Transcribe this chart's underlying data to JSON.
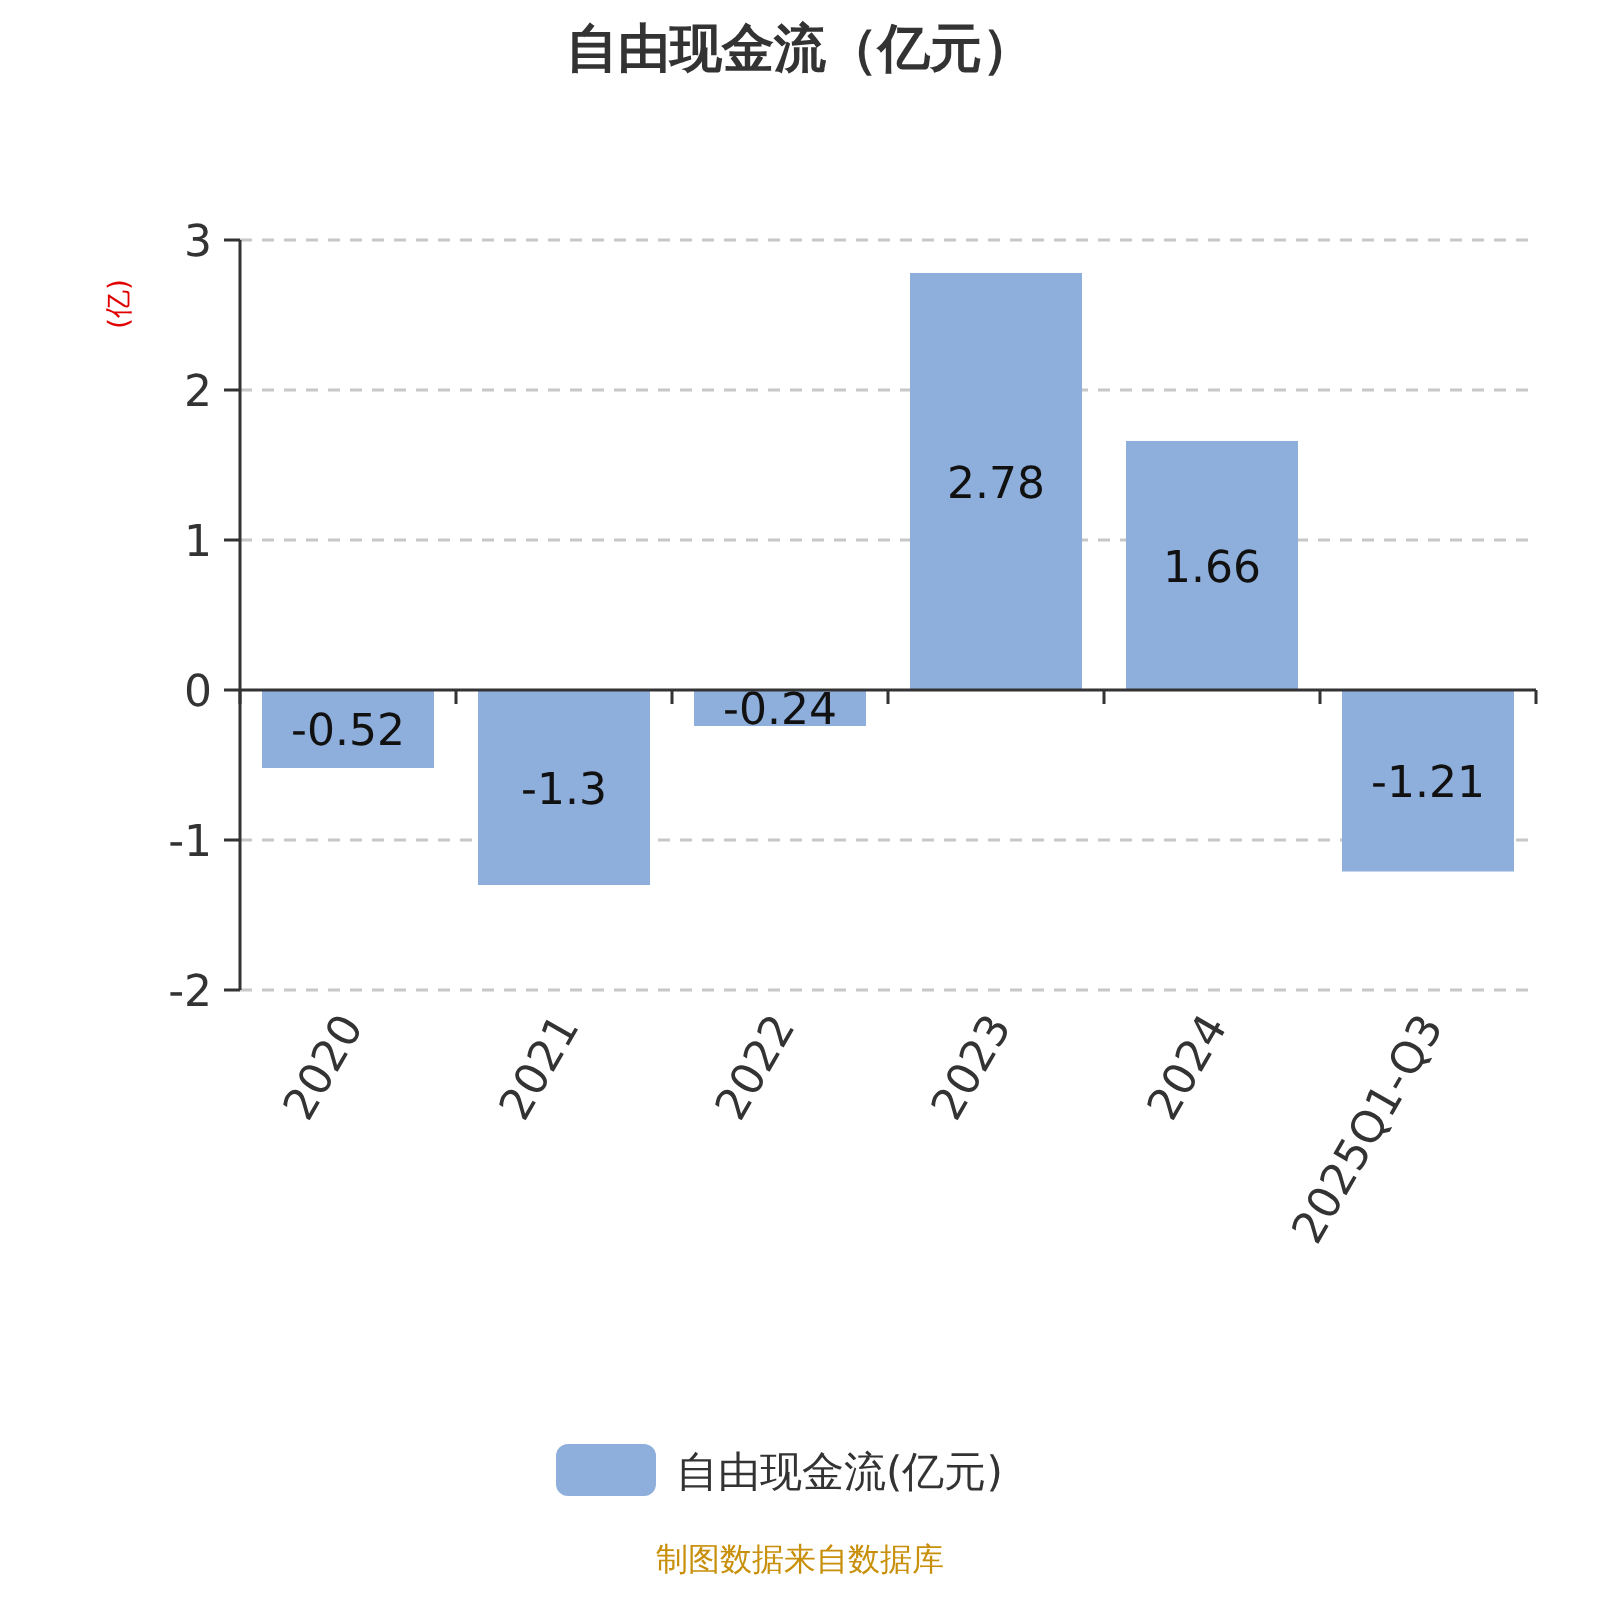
{
  "chart_data": {
    "type": "bar",
    "title": "自由现金流（亿元）",
    "ylabel": "(亿)",
    "categories": [
      "2020",
      "2021",
      "2022",
      "2023",
      "2024",
      "2025Q1-Q3"
    ],
    "series": [
      {
        "name": "自由现金流(亿元)",
        "color": "#8eaedb",
        "values": [
          -0.52,
          -1.3,
          -0.24,
          2.78,
          1.66,
          -1.21
        ]
      }
    ],
    "ylim": [
      -2,
      3
    ],
    "yticks": [
      -2,
      -1,
      0,
      1,
      2,
      3
    ],
    "grid": "y",
    "legend": "bottom",
    "data_labels": true,
    "annotations": [
      "制图数据来自数据库"
    ]
  }
}
